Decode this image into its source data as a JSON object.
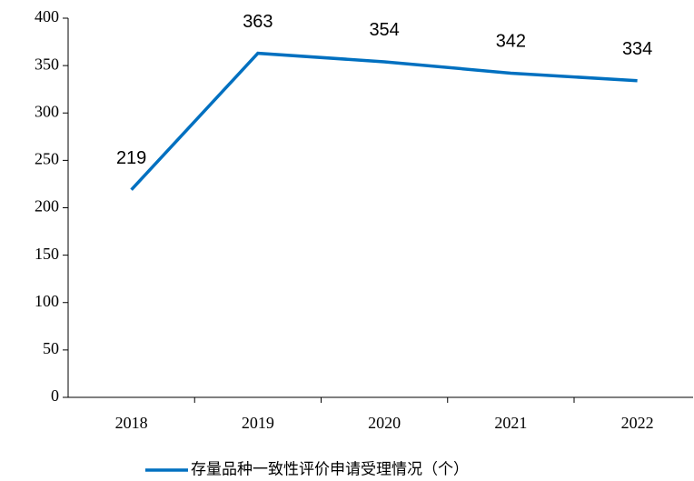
{
  "chart_data": {
    "type": "line",
    "categories": [
      "2018",
      "2019",
      "2020",
      "2021",
      "2022"
    ],
    "series": [
      {
        "name": "存量品种一致性评价申请受理情况（个）",
        "color": "#0070c0",
        "values": [
          219,
          363,
          354,
          342,
          334
        ]
      }
    ],
    "ylim": [
      0,
      400
    ],
    "yticks": [
      0,
      50,
      100,
      150,
      200,
      250,
      300,
      350,
      400
    ],
    "grid": false,
    "legend": "bottom"
  }
}
